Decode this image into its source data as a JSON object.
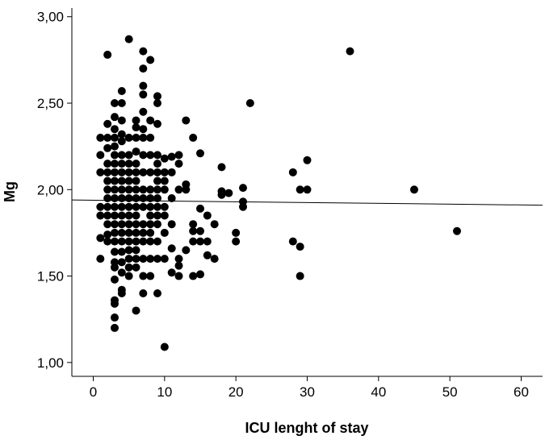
{
  "chart_data": {
    "type": "scatter",
    "title": "",
    "xlabel": "ICU lenght of stay",
    "ylabel": "Mg",
    "xlim": [
      -3,
      63
    ],
    "ylim": [
      0.92,
      3.05
    ],
    "xticks": [
      0,
      10,
      20,
      30,
      40,
      50,
      60
    ],
    "xtick_labels": [
      "0",
      "10",
      "20",
      "30",
      "40",
      "50",
      "60"
    ],
    "yticks": [
      1.0,
      1.5,
      2.0,
      2.5,
      3.0
    ],
    "ytick_labels": [
      "1,00",
      "1,50",
      "2,00",
      "2,50",
      "3,00"
    ],
    "grid": false,
    "marker_color": "#000000",
    "fit_line": {
      "x": [
        -3,
        63
      ],
      "y": [
        1.94,
        1.91
      ]
    },
    "points": [
      [
        1,
        2.3
      ],
      [
        1,
        2.2
      ],
      [
        1,
        2.1
      ],
      [
        1,
        1.9
      ],
      [
        1,
        1.85
      ],
      [
        1,
        1.72
      ],
      [
        1,
        1.6
      ],
      [
        2,
        2.78
      ],
      [
        2,
        2.38
      ],
      [
        2,
        2.3
      ],
      [
        2,
        2.24
      ],
      [
        2,
        2.15
      ],
      [
        2,
        2.1
      ],
      [
        2,
        2.05
      ],
      [
        2,
        2.0
      ],
      [
        2,
        1.95
      ],
      [
        2,
        1.9
      ],
      [
        2,
        1.85
      ],
      [
        2,
        1.8
      ],
      [
        2,
        1.74
      ],
      [
        2,
        1.7
      ],
      [
        3,
        2.5
      ],
      [
        3,
        2.42
      ],
      [
        3,
        2.35
      ],
      [
        3,
        2.3
      ],
      [
        3,
        2.25
      ],
      [
        3,
        2.2
      ],
      [
        3,
        2.15
      ],
      [
        3,
        2.1
      ],
      [
        3,
        2.05
      ],
      [
        3,
        2.0
      ],
      [
        3,
        1.95
      ],
      [
        3,
        1.9
      ],
      [
        3,
        1.85
      ],
      [
        3,
        1.8
      ],
      [
        3,
        1.75
      ],
      [
        3,
        1.7
      ],
      [
        3,
        1.64
      ],
      [
        3,
        1.58
      ],
      [
        3,
        1.55
      ],
      [
        3,
        1.48
      ],
      [
        3,
        1.36
      ],
      [
        3,
        1.34
      ],
      [
        3,
        1.26
      ],
      [
        3,
        1.2
      ],
      [
        4,
        2.57
      ],
      [
        4,
        2.5
      ],
      [
        4,
        2.4
      ],
      [
        4,
        2.32
      ],
      [
        4,
        2.28
      ],
      [
        4,
        2.2
      ],
      [
        4,
        2.15
      ],
      [
        4,
        2.1
      ],
      [
        4,
        2.05
      ],
      [
        4,
        2.0
      ],
      [
        4,
        1.95
      ],
      [
        4,
        1.9
      ],
      [
        4,
        1.85
      ],
      [
        4,
        1.8
      ],
      [
        4,
        1.75
      ],
      [
        4,
        1.7
      ],
      [
        4,
        1.64
      ],
      [
        4,
        1.58
      ],
      [
        4,
        1.52
      ],
      [
        4,
        1.42
      ],
      [
        4,
        1.4
      ],
      [
        5,
        2.87
      ],
      [
        5,
        2.3
      ],
      [
        5,
        2.2
      ],
      [
        5,
        2.15
      ],
      [
        5,
        2.1
      ],
      [
        5,
        2.05
      ],
      [
        5,
        2.0
      ],
      [
        5,
        1.95
      ],
      [
        5,
        1.9
      ],
      [
        5,
        1.85
      ],
      [
        5,
        1.8
      ],
      [
        5,
        1.75
      ],
      [
        5,
        1.7
      ],
      [
        5,
        1.65
      ],
      [
        5,
        1.6
      ],
      [
        5,
        1.55
      ],
      [
        5,
        1.5
      ],
      [
        6,
        2.4
      ],
      [
        6,
        2.36
      ],
      [
        6,
        2.3
      ],
      [
        6,
        2.22
      ],
      [
        6,
        2.15
      ],
      [
        6,
        2.1
      ],
      [
        6,
        2.05
      ],
      [
        6,
        2.0
      ],
      [
        6,
        1.95
      ],
      [
        6,
        1.9
      ],
      [
        6,
        1.85
      ],
      [
        6,
        1.8
      ],
      [
        6,
        1.75
      ],
      [
        6,
        1.7
      ],
      [
        6,
        1.65
      ],
      [
        6,
        1.6
      ],
      [
        6,
        1.55
      ],
      [
        6,
        1.3
      ],
      [
        7,
        2.8
      ],
      [
        7,
        2.7
      ],
      [
        7,
        2.6
      ],
      [
        7,
        2.55
      ],
      [
        7,
        2.45
      ],
      [
        7,
        2.35
      ],
      [
        7,
        2.3
      ],
      [
        7,
        2.2
      ],
      [
        7,
        2.1
      ],
      [
        7,
        2.0
      ],
      [
        7,
        1.95
      ],
      [
        7,
        1.9
      ],
      [
        7,
        1.8
      ],
      [
        7,
        1.75
      ],
      [
        7,
        1.7
      ],
      [
        7,
        1.6
      ],
      [
        7,
        1.5
      ],
      [
        7,
        1.4
      ],
      [
        8,
        2.75
      ],
      [
        8,
        2.4
      ],
      [
        8,
        2.3
      ],
      [
        8,
        2.2
      ],
      [
        8,
        2.1
      ],
      [
        8,
        2.0
      ],
      [
        8,
        1.95
      ],
      [
        8,
        1.9
      ],
      [
        8,
        1.85
      ],
      [
        8,
        1.8
      ],
      [
        8,
        1.75
      ],
      [
        8,
        1.7
      ],
      [
        8,
        1.6
      ],
      [
        8,
        1.5
      ],
      [
        9,
        2.54
      ],
      [
        9,
        2.5
      ],
      [
        9,
        2.38
      ],
      [
        9,
        2.2
      ],
      [
        9,
        2.15
      ],
      [
        9,
        2.1
      ],
      [
        9,
        2.05
      ],
      [
        9,
        2.0
      ],
      [
        9,
        1.95
      ],
      [
        9,
        1.9
      ],
      [
        9,
        1.85
      ],
      [
        9,
        1.8
      ],
      [
        9,
        1.7
      ],
      [
        9,
        1.6
      ],
      [
        9,
        1.4
      ],
      [
        10,
        2.18
      ],
      [
        10,
        2.1
      ],
      [
        10,
        2.05
      ],
      [
        10,
        2.0
      ],
      [
        10,
        1.9
      ],
      [
        10,
        1.85
      ],
      [
        10,
        1.75
      ],
      [
        10,
        1.6
      ],
      [
        10,
        1.09
      ],
      [
        11,
        2.19
      ],
      [
        11,
        2.1
      ],
      [
        11,
        1.95
      ],
      [
        11,
        1.8
      ],
      [
        11,
        1.66
      ],
      [
        11,
        1.52
      ],
      [
        12,
        2.2
      ],
      [
        12,
        2.15
      ],
      [
        12,
        2.0
      ],
      [
        12,
        1.6
      ],
      [
        12,
        1.56
      ],
      [
        12,
        1.5
      ],
      [
        13,
        2.4
      ],
      [
        13,
        2.03
      ],
      [
        13,
        2.0
      ],
      [
        13,
        1.65
      ],
      [
        14,
        2.3
      ],
      [
        14,
        1.8
      ],
      [
        14,
        1.76
      ],
      [
        14,
        1.7
      ],
      [
        14,
        1.5
      ],
      [
        15,
        2.21
      ],
      [
        15,
        1.89
      ],
      [
        15,
        1.76
      ],
      [
        15,
        1.7
      ],
      [
        15,
        1.51
      ],
      [
        16,
        1.85
      ],
      [
        16,
        1.7
      ],
      [
        16,
        1.62
      ],
      [
        17,
        1.8
      ],
      [
        17,
        1.6
      ],
      [
        18,
        2.13
      ],
      [
        18,
        1.99
      ],
      [
        18,
        1.97
      ],
      [
        19,
        1.98
      ],
      [
        20,
        1.75
      ],
      [
        20,
        1.7
      ],
      [
        21,
        2.01
      ],
      [
        21,
        1.93
      ],
      [
        21,
        1.9
      ],
      [
        22,
        2.5
      ],
      [
        28,
        2.1
      ],
      [
        28,
        1.7
      ],
      [
        29,
        2.0
      ],
      [
        29,
        1.67
      ],
      [
        29,
        1.5
      ],
      [
        30,
        2.17
      ],
      [
        30,
        2.0
      ],
      [
        36,
        2.8
      ],
      [
        45,
        2.0
      ],
      [
        51,
        1.76
      ]
    ]
  }
}
